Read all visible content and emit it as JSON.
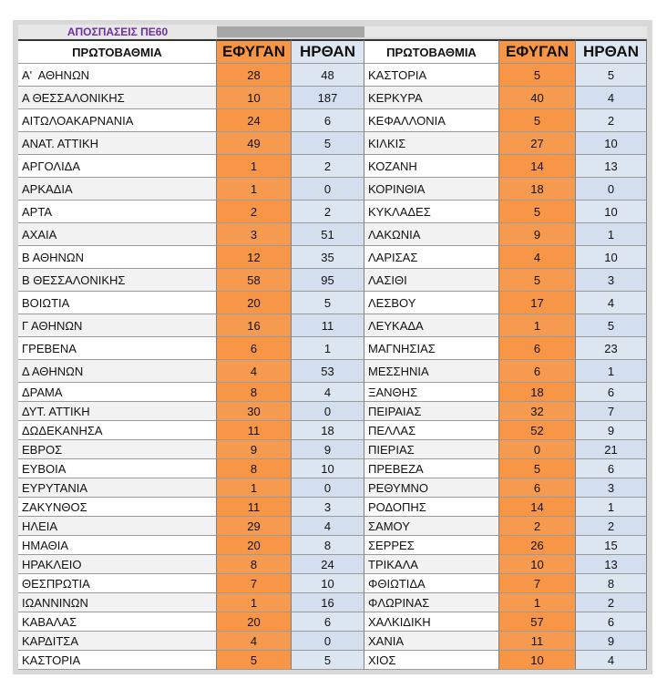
{
  "title": "ΑΠΟΣΠΑΣΕΙΣ ΠΕ60",
  "table": {
    "headers": [
      "ΠΡΩΤΟΒΑΘΜΙΑ",
      "ΕΦΥΓΑΝ",
      "ΗΡΘΑΝ",
      "ΠΡΩΤΟΒΑΘΜΙΑ",
      "ΕΦΥΓΑΝ",
      "ΗΡΘΑΝ"
    ],
    "rows": [
      [
        "Α'  ΑΘΗΝΩΝ",
        28,
        48,
        "ΚΑΣΤΟΡΙΑ",
        5,
        5
      ],
      [
        "Α ΘΕΣΣΑΛΟΝΙΚΗΣ",
        10,
        187,
        "ΚΕΡΚΥΡΑ",
        40,
        4
      ],
      [
        "ΑΙΤΩΛΟΑΚΑΡΝΑΝΙΑ",
        24,
        6,
        "ΚΕΦΑΛΛΟΝΙΑ",
        5,
        2
      ],
      [
        "ΑΝΑΤ. ΑΤΤΙΚΗ",
        49,
        5,
        "ΚΙΛΚΙΣ",
        27,
        10
      ],
      [
        "ΑΡΓΟΛΙΔΑ",
        1,
        2,
        "ΚΟΖΑΝΗ",
        14,
        13
      ],
      [
        "ΑΡΚΑΔΙΑ",
        1,
        0,
        "ΚΟΡΙΝΘΙΑ",
        18,
        0
      ],
      [
        "ΑΡΤΑ",
        2,
        2,
        "ΚΥΚΛΑΔΕΣ",
        5,
        10
      ],
      [
        "ΑΧΑΙΑ",
        3,
        51,
        "ΛΑΚΩΝΙΑ",
        9,
        1
      ],
      [
        "Β ΑΘΗΝΩΝ",
        12,
        35,
        "ΛΑΡΙΣΑΣ",
        4,
        10
      ],
      [
        "Β ΘΕΣΣΑΛΟΝΙΚΗΣ",
        58,
        95,
        "ΛΑΣΙΘΙ",
        5,
        3
      ],
      [
        "ΒΟΙΩΤΙΑ",
        20,
        5,
        "ΛΕΣΒΟΥ",
        17,
        4
      ],
      [
        "Γ ΑΘΗΝΩΝ",
        16,
        11,
        "ΛΕΥΚΑΔΑ",
        1,
        5
      ],
      [
        "ΓΡΕΒΕΝΑ",
        6,
        1,
        "ΜΑΓΝΗΣΙΑΣ",
        6,
        23
      ],
      [
        "Δ ΑΘΗΝΩΝ",
        4,
        53,
        "ΜΕΣΣΗΝΙΑ",
        6,
        1
      ],
      [
        "ΔΡΑΜΑ",
        8,
        4,
        "ΞΑΝΘΗΣ",
        18,
        6
      ],
      [
        "ΔΥΤ. ΑΤΤΙΚΗ",
        30,
        0,
        "ΠΕΙΡΑΙΑΣ",
        32,
        7
      ],
      [
        "ΔΩΔΕΚΑΝΗΣΑ",
        11,
        18,
        "ΠΕΛΛΑΣ",
        52,
        9
      ],
      [
        "ΕΒΡΟΣ",
        9,
        9,
        "ΠΙΕΡΙΑΣ",
        0,
        21
      ],
      [
        "ΕΥΒΟΙΑ",
        8,
        10,
        "ΠΡΕΒΕΖΑ",
        5,
        6
      ],
      [
        "ΕΥΡΥΤΑΝΙΑ",
        1,
        0,
        "ΡΕΘΥΜΝΟ",
        6,
        3
      ],
      [
        "ΖΑΚΥΝΘΟΣ",
        11,
        3,
        "ΡΟΔΟΠΗΣ",
        14,
        1
      ],
      [
        "ΗΛΕΙΑ",
        29,
        4,
        "ΣΑΜΟΥ",
        2,
        2
      ],
      [
        "ΗΜΑΘΙΑ",
        20,
        8,
        "ΣΕΡΡΕΣ",
        26,
        15
      ],
      [
        "ΗΡΑΚΛΕΙΟ",
        8,
        24,
        "ΤΡΙΚΑΛΑ",
        10,
        13
      ],
      [
        "ΘΕΣΠΡΩΤΙΑ",
        7,
        10,
        "ΦΘΙΩΤΙΔΑ",
        7,
        8
      ],
      [
        "ΙΩΑΝΝΙΝΩΝ",
        1,
        16,
        "ΦΛΩΡΙΝΑΣ",
        1,
        2
      ],
      [
        "ΚΑΒΑΛΑΣ",
        20,
        6,
        "ΧΑΛΚΙΔΙΚΗ",
        57,
        6
      ],
      [
        "ΚΑΡΔΙΤΣΑ",
        4,
        0,
        "ΧΑΝΙΑ",
        11,
        9
      ],
      [
        "ΚΑΣΤΟΡΙΑ",
        5,
        5,
        "ΧΙΟΣ",
        10,
        4
      ]
    ]
  }
}
